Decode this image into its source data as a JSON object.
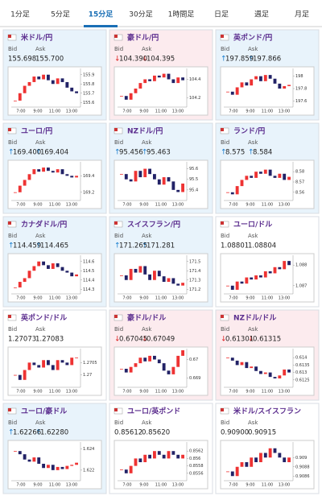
{
  "tabs": [
    "1分足",
    "5分足",
    "15分足",
    "30分足",
    "1時間足",
    "日足",
    "週足",
    "月足"
  ],
  "selected_tab": 2,
  "labels": {
    "bid": "Bid",
    "ask": "Ask"
  },
  "times": [
    "7:00",
    "9:00",
    "11:00",
    "13:00"
  ],
  "cards": [
    {
      "title": "米ドル/円",
      "arrow": "",
      "bid": "155.698",
      "ask": "155.700",
      "color": "#e8f3fb",
      "ylim": [
        155.55,
        155.95
      ],
      "yticks": [
        155.6,
        155.7,
        155.8,
        155.9
      ],
      "close": [
        155.62,
        155.7,
        155.78,
        155.82,
        155.88,
        155.85,
        155.9,
        155.84,
        155.8,
        155.86,
        155.82,
        155.76,
        155.72,
        155.7
      ]
    },
    {
      "title": "豪ドル/円",
      "arrow": "↓",
      "bid": "104.390",
      "ask": "104.395",
      "color": "#fcebee",
      "ylim": [
        104.1,
        104.5
      ],
      "yticks": [
        104.2,
        104.4
      ],
      "close": [
        104.22,
        104.18,
        104.25,
        104.3,
        104.36,
        104.4,
        104.38,
        104.44,
        104.42,
        104.46,
        104.4,
        104.36,
        104.42,
        104.39
      ]
    },
    {
      "title": "英ポンド/円",
      "arrow": "↑",
      "bid": "197.859",
      "ask": "197.866",
      "color": "#e8f3fb",
      "ylim": [
        197.5,
        198.1
      ],
      "yticks": [
        197.6,
        197.8,
        198
      ],
      "close": [
        197.75,
        197.7,
        197.82,
        197.9,
        197.85,
        197.95,
        198.0,
        197.92,
        198.02,
        197.96,
        197.88,
        197.8,
        197.84,
        197.86
      ]
    },
    {
      "title": "ユーロ/円",
      "arrow": "↑",
      "bid": "169.400",
      "ask": "169.404",
      "color": "#e8f3fb",
      "ylim": [
        169.1,
        169.55
      ],
      "yticks": [
        169.2,
        169.4
      ],
      "close": [
        169.2,
        169.28,
        169.35,
        169.42,
        169.48,
        169.45,
        169.5,
        169.46,
        169.44,
        169.48,
        169.42,
        169.4,
        169.38,
        169.4
      ]
    },
    {
      "title": "NZドル/円",
      "arrow": "↑",
      "bid": "95.456",
      "ask": "95.463",
      "color": "#e8f3fb",
      "ylim": [
        95.3,
        95.65
      ],
      "yticks": [
        95.4,
        95.5,
        95.6
      ],
      "close": [
        95.55,
        95.5,
        95.48,
        95.58,
        95.52,
        95.6,
        95.55,
        95.5,
        95.45,
        95.52,
        95.48,
        95.4,
        95.38,
        95.46
      ]
    },
    {
      "title": "ランド/円",
      "arrow": "↑",
      "bid": "8.575",
      "ask": "8.584",
      "color": "#e8f3fb",
      "ylim": [
        8.552,
        8.588
      ],
      "yticks": [
        8.56,
        8.57,
        8.58
      ],
      "close": [
        8.56,
        8.558,
        8.566,
        8.572,
        8.576,
        8.574,
        8.58,
        8.578,
        8.582,
        8.576,
        8.574,
        8.578,
        8.572,
        8.575
      ]
    },
    {
      "title": "カナダドル/円",
      "arrow": "↑",
      "bid": "114.459",
      "ask": "114.465",
      "color": "#e8f3fb",
      "ylim": [
        114.25,
        114.65
      ],
      "yticks": [
        114.3,
        114.4,
        114.5,
        114.6
      ],
      "close": [
        114.32,
        114.38,
        114.42,
        114.5,
        114.55,
        114.6,
        114.56,
        114.52,
        114.58,
        114.54,
        114.5,
        114.48,
        114.44,
        114.46
      ]
    },
    {
      "title": "スイスフラン/円",
      "arrow": "↑",
      "bid": "171.265",
      "ask": "171.281",
      "color": "#e8f3fb",
      "ylim": [
        171.15,
        171.55
      ],
      "yticks": [
        171.2,
        171.3,
        171.4,
        171.5
      ],
      "close": [
        171.35,
        171.3,
        171.42,
        171.38,
        171.45,
        171.36,
        171.3,
        171.4,
        171.34,
        171.28,
        171.32,
        171.26,
        171.24,
        171.27
      ]
    },
    {
      "title": "ユーロ/ドル",
      "arrow": "",
      "bid": "1.08801",
      "ask": "1.08804",
      "color": "#ffffff",
      "ylim": [
        1.0866,
        1.0884
      ],
      "yticks": [
        1.087,
        1.088
      ],
      "close": [
        1.087,
        1.0868,
        1.0872,
        1.0871,
        1.0874,
        1.0873,
        1.0875,
        1.0874,
        1.0877,
        1.0876,
        1.0879,
        1.0878,
        1.0882,
        1.088
      ]
    },
    {
      "title": "英ポンド/ドル",
      "arrow": "",
      "bid": "1.27073",
      "ask": "1.27083",
      "color": "#ffffff",
      "ylim": [
        1.2695,
        1.271
      ],
      "yticks": [
        1.27,
        1.2705
      ],
      "close": [
        1.27,
        1.2698,
        1.2702,
        1.2705,
        1.2704,
        1.2703,
        1.2706,
        1.2704,
        1.2702,
        1.2706,
        1.2705,
        1.2704,
        1.2707,
        1.2707
      ]
    },
    {
      "title": "豪ドル/ドル",
      "arrow": "↓",
      "bid": "0.67045",
      "ask": "0.67049",
      "color": "#fcebee",
      "ylim": [
        0.6685,
        0.6705
      ],
      "yticks": [
        0.669,
        0.67
      ],
      "close": [
        0.6695,
        0.6693,
        0.6696,
        0.6698,
        0.6701,
        0.6699,
        0.6702,
        0.67,
        0.6698,
        0.6694,
        0.6692,
        0.6696,
        0.6702,
        0.6705
      ]
    },
    {
      "title": "NZドル/ドル",
      "arrow": "↓",
      "bid": "0.61301",
      "ask": "0.61315",
      "color": "#fcebee",
      "ylim": [
        0.612,
        0.6145
      ],
      "yticks": [
        0.6125,
        0.613,
        0.6135,
        0.614
      ],
      "close": [
        0.614,
        0.6138,
        0.6135,
        0.6137,
        0.6133,
        0.6134,
        0.6131,
        0.6129,
        0.613,
        0.6127,
        0.6126,
        0.6128,
        0.6132,
        0.613
      ]
    },
    {
      "title": "ユーロ/豪ドル",
      "arrow": "↑",
      "bid": "1.62266",
      "ask": "1.62280",
      "color": "#e8f3fb",
      "ylim": [
        1.621,
        1.6245
      ],
      "yticks": [
        1.622,
        1.624
      ],
      "close": [
        1.6238,
        1.6235,
        1.623,
        1.6228,
        1.6232,
        1.6226,
        1.6222,
        1.6225,
        1.622,
        1.6223,
        1.6221,
        1.6224,
        1.6225,
        1.6227
      ]
    },
    {
      "title": "ユーロ/英ポンド",
      "arrow": "",
      "bid": "0.85612",
      "ask": "0.85620",
      "color": "#ffffff",
      "ylim": [
        0.8554,
        0.8564
      ],
      "yticks": [
        0.8556,
        0.8558,
        0.856,
        0.8562
      ],
      "close": [
        0.8557,
        0.8556,
        0.8558,
        0.856,
        0.8559,
        0.8561,
        0.856,
        0.8562,
        0.8561,
        0.856,
        0.8562,
        0.8561,
        0.856,
        0.8561
      ]
    },
    {
      "title": "米ドル/スイスフラン",
      "arrow": "",
      "bid": "0.90900",
      "ask": "0.90915",
      "color": "#ffffff",
      "ylim": [
        0.9085,
        0.9093
      ],
      "yticks": [
        0.9086,
        0.9088,
        0.909
      ],
      "close": [
        0.9087,
        0.9086,
        0.9088,
        0.9089,
        0.9088,
        0.909,
        0.9089,
        0.9091,
        0.909,
        0.9092,
        0.9091,
        0.909,
        0.9089,
        0.909
      ]
    }
  ]
}
